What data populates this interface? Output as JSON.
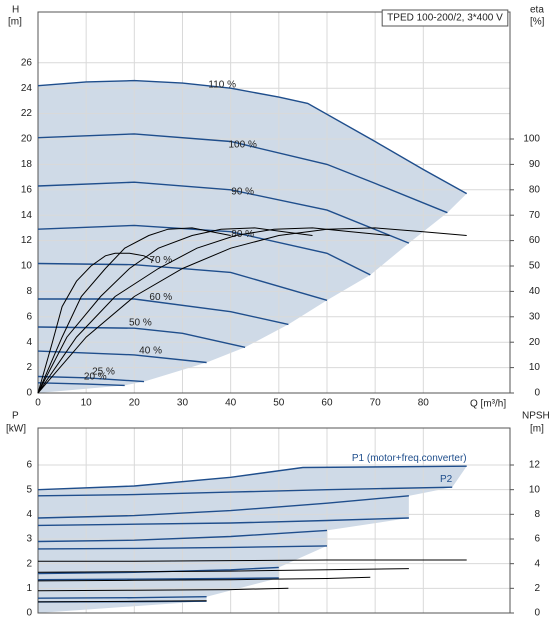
{
  "chart_data": [
    {
      "type": "line",
      "legend_box": "TPED 100-200/2, 3*400 V",
      "ylabel": "H",
      "yunit": "[m]",
      "y2label": "eta",
      "y2unit": "[%]",
      "xlabel": "Q [m³/h]",
      "xlim": [
        0,
        98
      ],
      "xticks": [
        0,
        10,
        20,
        30,
        40,
        50,
        60,
        70,
        80
      ],
      "ylim": [
        0,
        30
      ],
      "yticks": [
        0,
        2,
        4,
        6,
        8,
        10,
        12,
        14,
        16,
        18,
        20,
        22,
        24,
        26
      ],
      "y2lim": [
        0,
        150
      ],
      "y2ticks": [
        0,
        10,
        20,
        30,
        40,
        50,
        60,
        70,
        80,
        90,
        100
      ],
      "grid": true,
      "area_color": "#cfdae7",
      "series": [
        {
          "name": "110 %",
          "color": "#1f4e8c",
          "axis": "y",
          "x": [
            0,
            10,
            20,
            30,
            40,
            50,
            56,
            70,
            80,
            89
          ],
          "values": [
            24.2,
            24.5,
            24.6,
            24.4,
            24.0,
            23.3,
            22.8,
            19.8,
            17.6,
            15.7
          ]
        },
        {
          "name": "100 %",
          "color": "#1f4e8c",
          "axis": "y",
          "x": [
            0,
            20,
            40,
            60,
            70,
            85
          ],
          "values": [
            20.1,
            20.4,
            19.8,
            18.0,
            16.5,
            14.2
          ]
        },
        {
          "name": "90 %",
          "color": "#1f4e8c",
          "axis": "y",
          "x": [
            0,
            20,
            40,
            60,
            77
          ],
          "values": [
            16.3,
            16.6,
            16.0,
            14.4,
            11.8
          ]
        },
        {
          "name": "80 %",
          "color": "#1f4e8c",
          "axis": "y",
          "x": [
            0,
            20,
            40,
            60,
            69
          ],
          "values": [
            12.9,
            13.2,
            12.7,
            11.0,
            9.3
          ]
        },
        {
          "name": "70 %",
          "color": "#1f4e8c",
          "axis": "y",
          "x": [
            0,
            20,
            40,
            60
          ],
          "values": [
            10.2,
            10.1,
            9.5,
            7.3
          ]
        },
        {
          "name": "60 %",
          "color": "#1f4e8c",
          "axis": "y",
          "x": [
            0,
            20,
            40,
            52
          ],
          "values": [
            7.4,
            7.4,
            6.4,
            5.4
          ]
        },
        {
          "name": "50 %",
          "color": "#1f4e8c",
          "axis": "y",
          "x": [
            0,
            20,
            30,
            43
          ],
          "values": [
            5.2,
            5.1,
            4.7,
            3.6
          ]
        },
        {
          "name": "40 %",
          "color": "#1f4e8c",
          "axis": "y",
          "x": [
            0,
            20,
            35
          ],
          "values": [
            3.3,
            3.0,
            2.4
          ]
        },
        {
          "name": "25 %",
          "color": "#1f4e8c",
          "axis": "y",
          "x": [
            0,
            10,
            22
          ],
          "values": [
            1.3,
            1.2,
            0.9
          ]
        },
        {
          "name": "20 %",
          "color": "#1f4e8c",
          "axis": "y",
          "x": [
            0,
            10,
            18
          ],
          "values": [
            0.8,
            0.7,
            0.6
          ]
        },
        {
          "color": "#000000",
          "axis": "y2",
          "x": [
            0,
            10,
            20,
            30,
            40,
            50,
            60,
            70,
            80,
            89
          ],
          "values": [
            0,
            22,
            38,
            49,
            57,
            62,
            64.5,
            65,
            63.5,
            62
          ]
        },
        {
          "color": "#000000",
          "axis": "y2",
          "x": [
            0,
            8,
            16,
            25,
            33,
            41,
            49,
            57,
            65,
            73
          ],
          "values": [
            0,
            22,
            38,
            49,
            57,
            62,
            64.5,
            65,
            63.5,
            62
          ]
        },
        {
          "color": "#000000",
          "axis": "y2",
          "x": [
            0,
            6,
            13,
            19,
            25,
            32,
            38,
            45,
            51,
            57
          ],
          "values": [
            0,
            22,
            38,
            49,
            57,
            62,
            64.5,
            65,
            63.5,
            62
          ]
        },
        {
          "color": "#000000",
          "axis": "y2",
          "x": [
            0,
            5,
            9,
            14,
            18,
            23,
            27,
            32,
            36,
            40
          ],
          "values": [
            0,
            22,
            38,
            49,
            57,
            62,
            64.5,
            65,
            63.5,
            62
          ]
        },
        {
          "color": "#000000",
          "axis": "y2",
          "x": [
            0,
            3,
            5,
            8,
            11,
            14,
            16,
            19,
            22,
            24
          ],
          "values": [
            0,
            20,
            34,
            44,
            50,
            54,
            55,
            55,
            54,
            52
          ]
        }
      ]
    },
    {
      "type": "line",
      "ylabel": "P",
      "yunit": "[kW]",
      "y2label": "NPSH",
      "y2unit": "[m]",
      "xlim": [
        0,
        98
      ],
      "ylim": [
        0,
        7.5
      ],
      "yticks": [
        0,
        1,
        2,
        3,
        4,
        5,
        6
      ],
      "y2lim": [
        0,
        15
      ],
      "y2ticks": [
        0,
        2,
        4,
        6,
        8,
        10,
        12
      ],
      "grid": true,
      "area_color": "#cfdae7",
      "series": [
        {
          "name": "P1 (motor+freq.converter)",
          "color": "#1f4e8c",
          "axis": "y",
          "x": [
            0,
            20,
            40,
            55,
            89
          ],
          "values": [
            5.0,
            5.15,
            5.5,
            5.9,
            5.95
          ]
        },
        {
          "name": "P2",
          "color": "#1f4e8c",
          "axis": "y",
          "x": [
            0,
            20,
            40,
            60,
            86
          ],
          "values": [
            4.75,
            4.8,
            4.9,
            5.0,
            5.1
          ]
        },
        {
          "color": "#1f4e8c",
          "axis": "y",
          "x": [
            0,
            20,
            40,
            60,
            77
          ],
          "values": [
            3.85,
            3.95,
            4.15,
            4.45,
            4.75
          ]
        },
        {
          "color": "#1f4e8c",
          "axis": "y",
          "x": [
            0,
            20,
            40,
            60,
            77
          ],
          "values": [
            3.55,
            3.6,
            3.65,
            3.75,
            3.85
          ]
        },
        {
          "color": "#1f4e8c",
          "axis": "y",
          "x": [
            0,
            20,
            40,
            60
          ],
          "values": [
            2.9,
            2.95,
            3.1,
            3.35
          ]
        },
        {
          "color": "#1f4e8c",
          "axis": "y",
          "x": [
            0,
            20,
            40,
            60
          ],
          "values": [
            2.6,
            2.62,
            2.66,
            2.72
          ]
        },
        {
          "color": "#1f4e8c",
          "axis": "y",
          "x": [
            0,
            20,
            40,
            50
          ],
          "values": [
            1.6,
            1.65,
            1.75,
            1.85
          ]
        },
        {
          "color": "#1f4e8c",
          "axis": "y",
          "x": [
            0,
            20,
            40,
            50
          ],
          "values": [
            1.35,
            1.37,
            1.4,
            1.42
          ]
        },
        {
          "color": "#1f4e8c",
          "axis": "y",
          "x": [
            0,
            20,
            35
          ],
          "values": [
            0.6,
            0.62,
            0.66
          ]
        },
        {
          "color": "#1f4e8c",
          "axis": "y",
          "x": [
            0,
            20,
            35
          ],
          "values": [
            0.45,
            0.46,
            0.48
          ]
        },
        {
          "color": "#000000",
          "axis": "y2",
          "x": [
            0,
            20,
            40,
            60,
            80,
            89
          ],
          "values": [
            4.2,
            4.2,
            4.25,
            4.3,
            4.3,
            4.3
          ]
        },
        {
          "color": "#000000",
          "axis": "y2",
          "x": [
            0,
            20,
            40,
            60,
            77
          ],
          "values": [
            3.3,
            3.35,
            3.4,
            3.5,
            3.6
          ]
        },
        {
          "color": "#000000",
          "axis": "y2",
          "x": [
            0,
            20,
            40,
            60,
            69
          ],
          "values": [
            2.6,
            2.65,
            2.7,
            2.8,
            2.9
          ]
        },
        {
          "color": "#000000",
          "axis": "y2",
          "x": [
            0,
            20,
            40,
            52
          ],
          "values": [
            1.8,
            1.85,
            1.9,
            2.0
          ]
        },
        {
          "color": "#000000",
          "axis": "y2",
          "x": [
            0,
            20,
            35
          ],
          "values": [
            0.9,
            0.95,
            1.0
          ]
        }
      ]
    }
  ]
}
